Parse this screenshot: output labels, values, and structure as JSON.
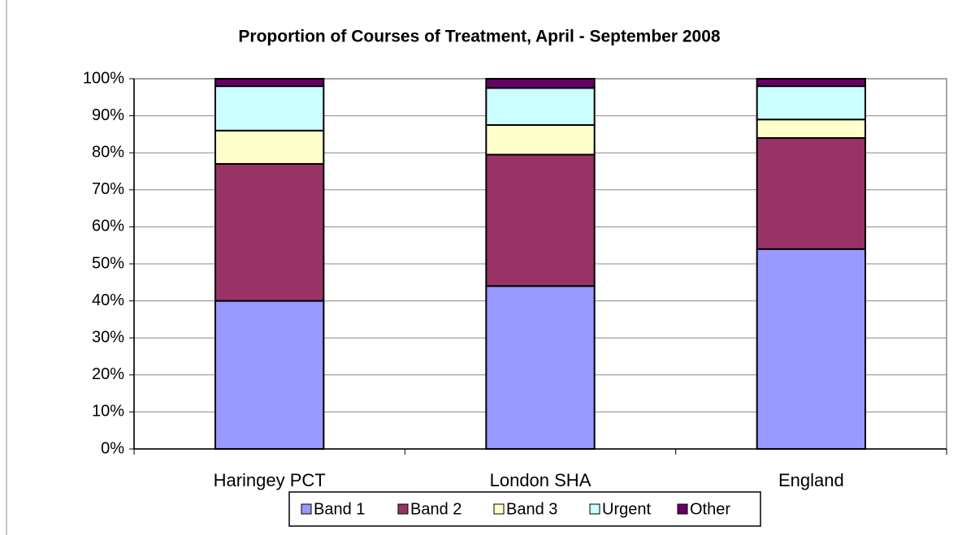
{
  "chart_data": {
    "type": "stacked_bar",
    "title": "Proportion of Courses of Treatment, April - September 2008",
    "categories": [
      "Haringey PCT",
      "London SHA",
      "England"
    ],
    "series": [
      {
        "name": "Band 1",
        "color": "#9999ff",
        "values": [
          40,
          44,
          54
        ]
      },
      {
        "name": "Band 2",
        "color": "#993366",
        "values": [
          37,
          35.5,
          30
        ]
      },
      {
        "name": "Band 3",
        "color": "#ffffcc",
        "values": [
          9,
          8,
          5
        ]
      },
      {
        "name": "Urgent",
        "color": "#ccffff",
        "values": [
          12,
          10,
          9
        ]
      },
      {
        "name": "Other",
        "color": "#660066",
        "values": [
          2,
          2.5,
          2
        ]
      }
    ],
    "ylim": [
      0,
      100
    ],
    "yticks": [
      {
        "value": 0,
        "label": "0%"
      },
      {
        "value": 10,
        "label": "10%"
      },
      {
        "value": 20,
        "label": "20%"
      },
      {
        "value": 30,
        "label": "30%"
      },
      {
        "value": 40,
        "label": "40%"
      },
      {
        "value": 50,
        "label": "50%"
      },
      {
        "value": 60,
        "label": "60%"
      },
      {
        "value": 70,
        "label": "70%"
      },
      {
        "value": 80,
        "label": "80%"
      },
      {
        "value": 90,
        "label": "90%"
      },
      {
        "value": 100,
        "label": "100%"
      }
    ],
    "grid": true,
    "legend": "bottom"
  }
}
